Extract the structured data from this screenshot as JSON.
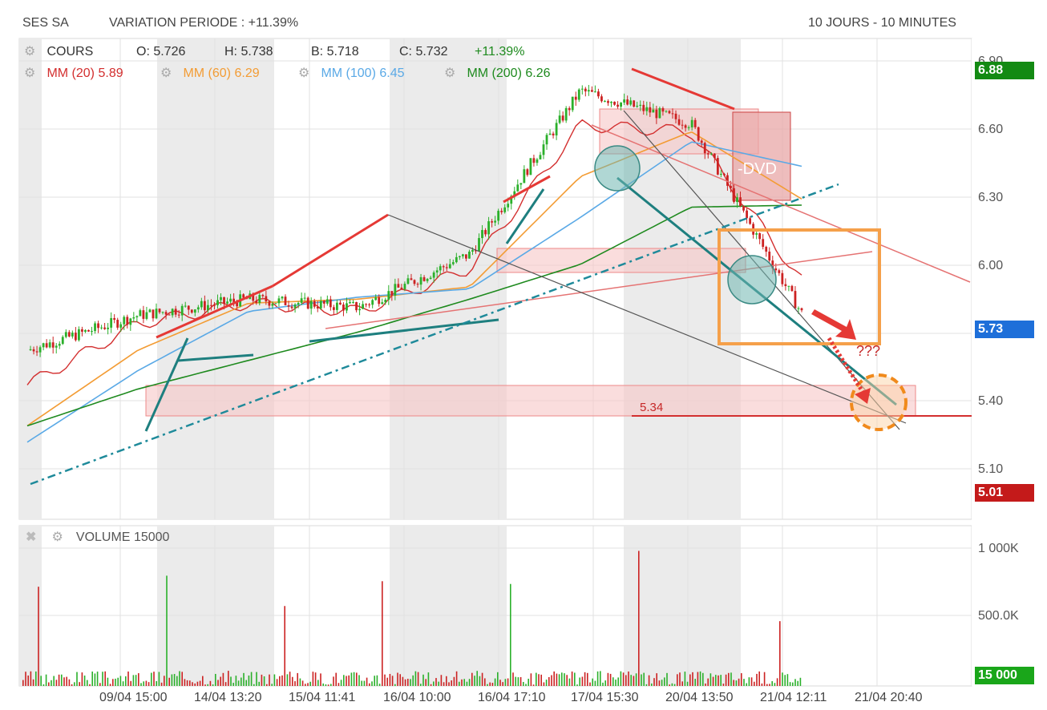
{
  "header": {
    "ticker": "SES SA",
    "variation": "VARIATION PERIODE : +11.39%",
    "period": "10 JOURS - 10 MINUTES"
  },
  "price_legend": {
    "cours": "COURS",
    "open": "O: 5.726",
    "high": "H: 5.738",
    "low": "B: 5.718",
    "close": "C: 5.732",
    "change": "+11.39%"
  },
  "ma_legend": [
    {
      "label": "MM (20)",
      "value": "5.89",
      "color": "#d32f2f"
    },
    {
      "label": "MM (60)",
      "value": "6.29",
      "color": "#f39c34"
    },
    {
      "label": "MM (100)",
      "value": "6.45",
      "color": "#5aa9e6"
    },
    {
      "label": "MM (200)",
      "value": "6.26",
      "color": "#1e8a1e"
    }
  ],
  "price_axis_ticks": [
    "6.90",
    "6.60",
    "6.30",
    "6.00",
    "5.70",
    "5.40",
    "5.10"
  ],
  "badges": {
    "high": "6.88",
    "last": "5.73",
    "low": "5.01",
    "volume": "15 000"
  },
  "volume_legend": {
    "label": "VOLUME",
    "value": "15000"
  },
  "volume_axis_ticks": [
    "1 000K",
    "500.0K"
  ],
  "x_ticks": [
    "09/04 15:00",
    "14/04 13:20",
    "15/04 11:41",
    "16/04 10:00",
    "16/04 17:10",
    "17/04 15:30",
    "20/04 13:50",
    "21/04 12:11",
    "21/04 20:40"
  ],
  "annotations": {
    "dvd": "-DVD",
    "question": "???",
    "support": "5.34"
  },
  "chart_data": {
    "type": "line",
    "title": "SES SA",
    "ylim": [
      4.95,
      6.95
    ],
    "x": [
      "09/04 15:00",
      "14/04 13:20",
      "15/04 11:41",
      "16/04 10:00",
      "16/04 17:10",
      "17/04 15:30",
      "20/04 13:50",
      "21/04 12:11"
    ],
    "series": [
      {
        "name": "COURS",
        "values": [
          5.55,
          5.72,
          5.8,
          5.76,
          6.02,
          6.82,
          6.66,
          5.73
        ]
      },
      {
        "name": "MM (20)",
        "values": [
          5.38,
          5.68,
          5.78,
          5.74,
          5.95,
          6.65,
          6.62,
          5.89
        ]
      },
      {
        "name": "MM (60)",
        "values": [
          5.18,
          5.55,
          5.78,
          5.8,
          5.86,
          6.4,
          6.62,
          6.29
        ]
      },
      {
        "name": "MM (100)",
        "values": [
          5.1,
          5.45,
          5.74,
          5.81,
          5.85,
          6.2,
          6.57,
          6.45
        ]
      },
      {
        "name": "MM (200)",
        "values": [
          5.18,
          5.36,
          5.5,
          5.64,
          5.8,
          5.97,
          6.25,
          6.26
        ]
      }
    ],
    "volume_max": "1 000K",
    "colors": {
      "up": "#2bb02b",
      "down": "#cc2222"
    }
  }
}
